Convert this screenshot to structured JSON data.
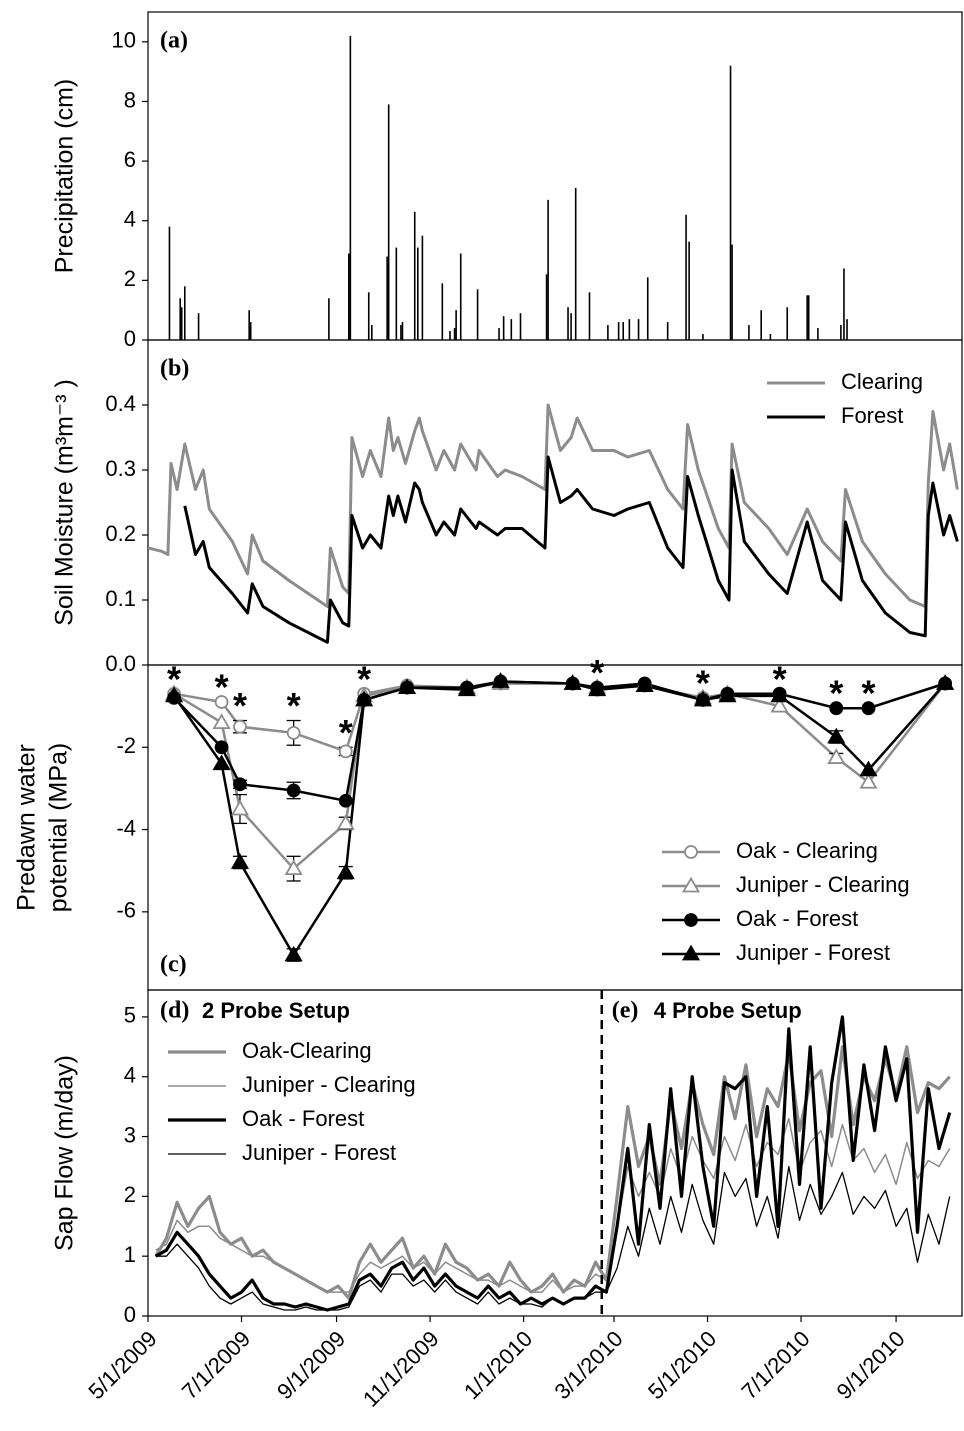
{
  "chart_data": [
    {
      "type": "bar",
      "panel_label": "(a)",
      "ylabel": "Precipitation (cm)",
      "color": "#000000",
      "xlim": [
        "5/1/2009",
        "10/14/2010"
      ],
      "ylim": [
        0,
        11
      ],
      "yticks": [
        0,
        2,
        4,
        6,
        8,
        10
      ],
      "x": [
        "5/15/2009",
        "5/22/2009",
        "5/23/2009",
        "5/25/2009",
        "6/3/2009",
        "7/6/2009",
        "7/7/2009",
        "8/27/2009",
        "9/9/2009",
        "9/10/2009",
        "9/22/2009",
        "9/24/2009",
        "10/4/2009",
        "10/5/2009",
        "10/10/2009",
        "10/13/2009",
        "10/14/2009",
        "10/22/2009",
        "10/24/2009",
        "10/27/2009",
        "11/9/2009",
        "11/14/2009",
        "11/17/2009",
        "11/18/2009",
        "11/21/2009",
        "12/2/2009",
        "12/16/2009",
        "12/19/2009",
        "12/24/2009",
        "12/30/2009",
        "1/16/2010",
        "1/17/2010",
        "1/30/2010",
        "2/1/2010",
        "2/4/2010",
        "2/13/2010",
        "2/25/2010",
        "3/4/2010",
        "3/7/2010",
        "3/11/2010",
        "3/17/2010",
        "3/23/2010",
        "4/5/2010",
        "4/17/2010",
        "4/19/2010",
        "4/28/2010",
        "5/16/2010",
        "5/17/2010",
        "5/28/2010",
        "6/5/2010",
        "6/11/2010",
        "6/22/2010",
        "7/5/2010",
        "7/6/2010",
        "7/12/2010",
        "7/27/2010",
        "7/29/2010",
        "7/31/2010"
      ],
      "values": [
        3.8,
        1.4,
        1.1,
        1.8,
        0.9,
        1.0,
        0.6,
        1.4,
        2.9,
        10.2,
        1.6,
        0.5,
        2.8,
        7.9,
        3.1,
        0.5,
        0.6,
        4.3,
        3.1,
        3.5,
        1.9,
        0.3,
        0.4,
        1.0,
        2.9,
        1.7,
        0.4,
        0.8,
        0.7,
        0.9,
        2.2,
        4.7,
        1.1,
        0.9,
        5.1,
        1.6,
        0.5,
        0.6,
        0.6,
        0.7,
        0.7,
        2.1,
        0.6,
        4.2,
        3.3,
        0.2,
        9.2,
        3.2,
        0.5,
        1.0,
        0.2,
        1.1,
        1.5,
        1.5,
        0.4,
        0.5,
        2.4,
        0.7
      ]
    },
    {
      "type": "line",
      "panel_label": "(b)",
      "ylabel": "Soil Moisture (m³m⁻³ )",
      "legend": "upper right",
      "xlim": [
        "5/1/2009",
        "10/14/2010"
      ],
      "ylim": [
        0,
        0.5
      ],
      "yticks": [
        {
          "value": 0,
          "label": "0.0"
        },
        0.1,
        0.2,
        0.3,
        0.4
      ],
      "x": [
        "5/1/2009",
        "5/10/2009",
        "5/14/2009",
        "5/16/2009",
        "5/20/2009",
        "5/25/2009",
        "6/1/2009",
        "6/6/2009",
        "6/10/2009",
        "6/25/2009",
        "7/5/2009",
        "7/8/2009",
        "7/15/2009",
        "8/1/2009",
        "8/26/2009",
        "8/28/2009",
        "9/5/2009",
        "9/9/2009",
        "9/11/2009",
        "9/18/2009",
        "9/23/2009",
        "9/30/2009",
        "10/5/2009",
        "10/8/2009",
        "10/11/2009",
        "10/16/2009",
        "10/22/2009",
        "10/25/2009",
        "10/27/2009",
        "11/5/2009",
        "11/10/2009",
        "11/17/2009",
        "11/21/2009",
        "12/1/2009",
        "12/3/2009",
        "12/15/2009",
        "12/20/2009",
        "12/31/2009",
        "1/15/2010",
        "1/17/2010",
        "1/25/2010",
        "2/1/2010",
        "2/5/2010",
        "2/15/2010",
        "3/1/2010",
        "3/10/2010",
        "3/24/2010",
        "4/5/2010",
        "4/15/2010",
        "4/18/2010",
        "4/25/2010",
        "5/8/2010",
        "5/15/2010",
        "5/17/2010",
        "5/25/2010",
        "6/10/2010",
        "6/22/2010",
        "7/5/2010",
        "7/15/2010",
        "7/27/2010",
        "7/30/2010",
        "8/10/2010",
        "8/25/2010",
        "9/10/2010",
        "9/20/2010",
        "9/22/2010",
        "9/25/2010",
        "10/2/2010",
        "10/6/2010",
        "10/11/2010"
      ],
      "series": [
        {
          "name": "Clearing",
          "color": "#8c8c8c",
          "line_width": 3,
          "values": [
            0.18,
            0.175,
            0.17,
            0.31,
            0.27,
            0.34,
            0.27,
            0.3,
            0.24,
            0.19,
            0.14,
            0.2,
            0.16,
            0.13,
            0.09,
            0.18,
            0.12,
            0.11,
            0.35,
            0.29,
            0.33,
            0.29,
            0.38,
            0.33,
            0.35,
            0.31,
            0.36,
            0.38,
            0.36,
            0.3,
            0.33,
            0.3,
            0.34,
            0.3,
            0.33,
            0.29,
            0.3,
            0.29,
            0.27,
            0.4,
            0.33,
            0.35,
            0.38,
            0.33,
            0.33,
            0.32,
            0.33,
            0.27,
            0.24,
            0.37,
            0.3,
            0.21,
            0.18,
            0.34,
            0.25,
            0.21,
            0.17,
            0.24,
            0.19,
            0.16,
            0.27,
            0.19,
            0.14,
            0.1,
            0.09,
            0.28,
            0.39,
            0.3,
            0.34,
            0.27
          ]
        },
        {
          "name": "Forest",
          "color": "#000000",
          "line_width": 3,
          "values": [
            null,
            null,
            null,
            null,
            null,
            0.245,
            0.17,
            0.19,
            0.15,
            0.11,
            0.08,
            0.125,
            0.09,
            0.065,
            0.035,
            0.1,
            0.065,
            0.06,
            0.23,
            0.18,
            0.2,
            0.18,
            0.26,
            0.23,
            0.26,
            0.22,
            0.28,
            0.27,
            0.25,
            0.2,
            0.22,
            0.2,
            0.24,
            0.21,
            0.22,
            0.2,
            0.21,
            0.21,
            0.18,
            0.32,
            0.25,
            0.26,
            0.27,
            0.24,
            0.23,
            0.24,
            0.25,
            0.18,
            0.15,
            0.29,
            0.23,
            0.13,
            0.1,
            0.3,
            0.19,
            0.14,
            0.11,
            0.22,
            0.13,
            0.1,
            0.22,
            0.13,
            0.08,
            0.05,
            0.045,
            0.23,
            0.28,
            0.2,
            0.23,
            0.19
          ]
        }
      ]
    },
    {
      "type": "line",
      "panel_label": "(c)",
      "ylabel": [
        "Predawn water",
        "potential (MPa)"
      ],
      "legend": "lower right",
      "xlim": [
        "5/1/2009",
        "10/14/2010"
      ],
      "ylim": [
        -7.9,
        0
      ],
      "yticks": [
        -6,
        -4,
        -2
      ],
      "x": [
        "5/18/2009",
        "6/18/2009",
        "6/30/2009",
        "8/4/2009",
        "9/7/2009",
        "9/19/2009",
        "10/17/2009",
        "11/25/2009",
        "12/17/2009",
        "2/2/2010",
        "2/18/2010",
        "3/21/2010",
        "4/28/2010",
        "5/14/2010",
        "6/17/2010",
        "7/24/2010",
        "8/14/2010",
        "10/3/2010"
      ],
      "significance": {
        "label": "*",
        "x": [
          "5/18/2009",
          "6/18/2009",
          "6/30/2009",
          "8/4/2009",
          "9/7/2009",
          "9/19/2009",
          "2/18/2010",
          "4/28/2010",
          "6/17/2010",
          "7/24/2010",
          "8/14/2010"
        ]
      },
      "series": [
        {
          "name": "Oak - Clearing",
          "color": "#8c8c8c",
          "marker": "circle",
          "filled": false,
          "line_width": 2.5,
          "values": [
            -0.7,
            -0.9,
            -1.5,
            -1.65,
            -2.1,
            -0.7,
            -0.5,
            -0.55,
            -0.45,
            -0.45,
            -0.6,
            -0.5,
            -0.8,
            -0.7,
            -0.7,
            -1.05,
            -1.05,
            -0.45
          ],
          "errors": [
            0,
            0,
            0.15,
            0.3,
            0.1,
            0,
            0,
            0,
            0,
            0,
            0,
            0,
            0,
            0,
            0,
            0,
            0,
            0
          ]
        },
        {
          "name": "Juniper - Clearing",
          "color": "#8c8c8c",
          "marker": "triangle",
          "filled": false,
          "line_width": 2.5,
          "values": [
            -0.7,
            -1.4,
            -3.5,
            -4.95,
            -3.85,
            -0.75,
            -0.55,
            -0.55,
            -0.45,
            -0.45,
            -0.55,
            -0.5,
            -0.8,
            -0.7,
            -1.0,
            -2.25,
            -2.85,
            -0.45
          ],
          "errors": [
            0,
            0,
            0.35,
            0.3,
            0.15,
            0,
            0,
            0,
            0,
            0,
            0,
            0,
            0,
            0,
            0,
            0.1,
            0,
            0
          ]
        },
        {
          "name": "Oak - Forest",
          "color": "#000000",
          "marker": "circle",
          "filled": true,
          "line_width": 2.5,
          "values": [
            -0.8,
            -2.0,
            -2.9,
            -3.05,
            -3.3,
            -0.85,
            -0.55,
            -0.55,
            -0.4,
            -0.45,
            -0.55,
            -0.45,
            -0.85,
            -0.7,
            -0.7,
            -1.05,
            -1.05,
            -0.45
          ],
          "errors": [
            0,
            0,
            0.1,
            0.2,
            0,
            0,
            0,
            0,
            0,
            0,
            0,
            0,
            0,
            0,
            0,
            0,
            0,
            0
          ]
        },
        {
          "name": "Juniper - Forest",
          "color": "#000000",
          "marker": "triangle",
          "filled": true,
          "line_width": 2.5,
          "values": [
            -0.75,
            -2.4,
            -4.8,
            -7.05,
            -5.05,
            -0.85,
            -0.55,
            -0.6,
            -0.4,
            -0.45,
            -0.6,
            -0.5,
            -0.85,
            -0.75,
            -0.75,
            -1.75,
            -2.55,
            -0.45
          ],
          "errors": [
            0,
            0,
            0.15,
            0.15,
            0.15,
            0,
            0,
            0,
            0,
            0,
            0,
            0,
            0,
            0,
            0,
            0.15,
            0,
            0
          ]
        }
      ]
    },
    {
      "type": "line",
      "ylabel": "Sap Flow (m/day)",
      "legend": "upper left",
      "annotations": [
        {
          "label": "(d)",
          "text": "2 Probe Setup"
        },
        {
          "label": "(e)",
          "text": "4 Probe Setup"
        }
      ],
      "vline": "2/21/2010",
      "xlim": [
        "5/1/2009",
        "10/14/2010"
      ],
      "ylim": [
        0,
        5.45
      ],
      "yticks": [
        0,
        1,
        2,
        3,
        4,
        5
      ],
      "xticks": [
        "5/1/2009",
        "7/1/2009",
        "9/1/2009",
        "11/1/2009",
        "1/1/2010",
        "3/1/2010",
        "5/1/2010",
        "7/1/2010",
        "9/1/2010"
      ],
      "x": [
        "5/6/2009",
        "5/13/2009",
        "5/20/2009",
        "5/27/2009",
        "6/3/2009",
        "6/10/2009",
        "6/17/2009",
        "6/24/2009",
        "7/1/2009",
        "7/8/2009",
        "7/15/2009",
        "7/22/2009",
        "7/29/2009",
        "8/5/2009",
        "8/12/2009",
        "8/19/2009",
        "8/26/2009",
        "9/2/2009",
        "9/9/2009",
        "9/16/2009",
        "9/23/2009",
        "9/30/2009",
        "10/7/2009",
        "10/14/2009",
        "10/21/2009",
        "10/28/2009",
        "11/4/2009",
        "11/11/2009",
        "11/18/2009",
        "11/25/2009",
        "12/2/2009",
        "12/9/2009",
        "12/16/2009",
        "12/23/2009",
        "12/30/2009",
        "1/6/2010",
        "1/13/2010",
        "1/20/2010",
        "1/27/2010",
        "2/3/2010",
        "2/10/2010",
        "2/17/2010",
        "2/24/2010",
        "3/3/2010",
        "3/10/2010",
        "3/17/2010",
        "3/24/2010",
        "3/31/2010",
        "4/7/2010",
        "4/14/2010",
        "4/21/2010",
        "4/28/2010",
        "5/5/2010",
        "5/12/2010",
        "5/19/2010",
        "5/26/2010",
        "6/2/2010",
        "6/9/2010",
        "6/16/2010",
        "6/23/2010",
        "6/30/2010",
        "7/7/2010",
        "7/14/2010",
        "7/21/2010",
        "7/28/2010",
        "8/4/2010",
        "8/11/2010",
        "8/18/2010",
        "8/25/2010",
        "9/1/2010",
        "9/8/2010",
        "9/15/2010",
        "9/22/2010",
        "9/29/2010",
        "10/6/2010"
      ],
      "series": [
        {
          "name": "Oak-Clearing",
          "color": "#8c8c8c",
          "line_width": 3.2,
          "values": [
            1.0,
            1.3,
            1.9,
            1.5,
            1.8,
            2.0,
            1.4,
            1.2,
            1.3,
            1.0,
            1.1,
            0.9,
            0.8,
            0.7,
            0.6,
            0.5,
            0.4,
            0.5,
            0.3,
            0.9,
            1.2,
            0.9,
            1.1,
            1.3,
            0.8,
            1.0,
            0.7,
            1.2,
            0.9,
            0.8,
            0.6,
            0.7,
            0.5,
            0.9,
            0.6,
            0.4,
            0.5,
            0.7,
            0.4,
            0.6,
            0.5,
            0.9,
            0.6,
            2.0,
            3.5,
            2.5,
            3.0,
            2.2,
            3.6,
            2.8,
            3.9,
            3.2,
            2.7,
            4.0,
            3.3,
            4.2,
            3.0,
            3.8,
            3.5,
            4.4,
            3.1,
            3.9,
            4.1,
            3.0,
            4.5,
            3.2,
            4.0,
            3.6,
            4.3,
            3.7,
            4.5,
            3.4,
            3.9,
            3.8,
            4.0
          ]
        },
        {
          "name": "Juniper - Clearing",
          "color": "#8c8c8c",
          "line_width": 1.5,
          "values": [
            1.1,
            1.2,
            1.6,
            1.4,
            1.5,
            1.5,
            1.3,
            1.2,
            1.1,
            1.0,
            1.0,
            0.9,
            0.8,
            0.7,
            0.6,
            0.5,
            0.4,
            0.4,
            0.4,
            0.7,
            0.9,
            0.8,
            0.9,
            1.0,
            0.8,
            0.9,
            0.7,
            0.9,
            0.8,
            0.7,
            0.6,
            0.6,
            0.5,
            0.6,
            0.5,
            0.4,
            0.4,
            0.6,
            0.4,
            0.5,
            0.5,
            0.7,
            0.6,
            1.5,
            2.5,
            2.0,
            2.4,
            2.0,
            2.8,
            2.3,
            3.0,
            2.6,
            2.3,
            3.0,
            2.6,
            3.2,
            2.5,
            2.9,
            2.7,
            3.3,
            2.4,
            2.9,
            3.1,
            2.5,
            3.2,
            2.6,
            2.8,
            2.4,
            2.7,
            2.2,
            2.9,
            2.3,
            2.6,
            2.5,
            2.8
          ]
        },
        {
          "name": "Oak - Forest",
          "color": "#000000",
          "line_width": 3.2,
          "values": [
            1.0,
            1.1,
            1.4,
            1.2,
            1.0,
            0.7,
            0.5,
            0.3,
            0.4,
            0.6,
            0.3,
            0.2,
            0.2,
            0.15,
            0.2,
            0.15,
            0.1,
            0.15,
            0.2,
            0.6,
            0.7,
            0.5,
            0.8,
            0.9,
            0.6,
            0.8,
            0.5,
            0.7,
            0.5,
            0.4,
            0.3,
            0.5,
            0.3,
            0.4,
            0.2,
            0.3,
            0.2,
            0.3,
            0.2,
            0.3,
            0.3,
            0.5,
            0.4,
            1.5,
            2.8,
            1.2,
            3.2,
            1.8,
            3.8,
            2.0,
            4.0,
            2.5,
            1.5,
            3.9,
            3.8,
            4.0,
            2.0,
            3.5,
            1.5,
            4.8,
            2.2,
            4.5,
            1.8,
            3.9,
            5.0,
            2.6,
            4.2,
            3.1,
            4.5,
            3.6,
            4.3,
            1.4,
            3.8,
            2.8,
            3.4
          ]
        },
        {
          "name": "Juniper - Forest",
          "color": "#000000",
          "line_width": 1.3,
          "values": [
            1.0,
            1.0,
            1.2,
            1.0,
            0.8,
            0.5,
            0.3,
            0.2,
            0.3,
            0.4,
            0.2,
            0.15,
            0.1,
            0.1,
            0.15,
            0.1,
            0.1,
            0.1,
            0.15,
            0.5,
            0.6,
            0.4,
            0.7,
            0.7,
            0.5,
            0.6,
            0.4,
            0.6,
            0.4,
            0.3,
            0.2,
            0.4,
            0.2,
            0.3,
            0.2,
            0.2,
            0.15,
            0.3,
            0.2,
            0.3,
            0.3,
            0.4,
            0.4,
            0.8,
            1.5,
            1.0,
            1.8,
            1.2,
            2.0,
            1.4,
            2.2,
            1.6,
            1.2,
            2.4,
            2.0,
            2.3,
            1.5,
            2.0,
            1.3,
            2.5,
            1.6,
            2.2,
            1.7,
            2.0,
            2.4,
            1.7,
            2.0,
            1.8,
            2.1,
            1.5,
            1.8,
            0.9,
            1.7,
            1.2,
            2.0
          ]
        }
      ]
    }
  ]
}
